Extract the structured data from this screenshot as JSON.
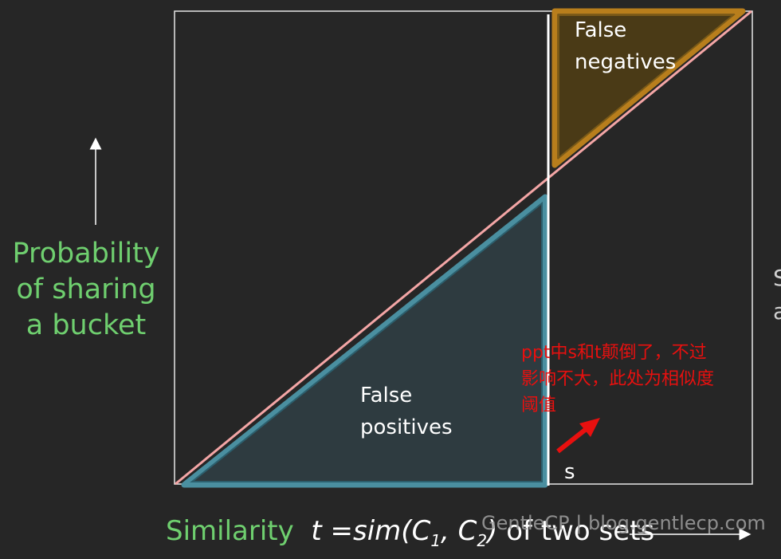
{
  "y_axis_label": [
    "Probability",
    "of sharing",
    "a bucket"
  ],
  "regions": {
    "false_negatives": [
      "False",
      "negatives"
    ],
    "false_positives": [
      "False",
      "positives"
    ]
  },
  "threshold_label": "s",
  "annotation": [
    "ppt中s和t颠倒了，不过",
    "影响不大，此处为相似度",
    "阈值"
  ],
  "x_axis_label": {
    "prefix": "Similarity",
    "formula_t": "t =sim(C",
    "sub1": "1",
    "comma": ", C",
    "sub2": "2",
    "close": ")",
    "suffix": " of two sets"
  },
  "watermark": "GentleCP | blog.gentlecp.com",
  "cut_off_text": [
    "S",
    "a"
  ],
  "colors": {
    "background": "#262626",
    "diagonal": "#f4a6a6",
    "false_negative_fill": "#4a3a16",
    "false_negative_stroke": "#b87e1c",
    "false_positive_fill": "#2e3b40",
    "false_positive_stroke": "#4a8fa0",
    "label_green": "#6fcf6f",
    "annotation_red": "#e8100f"
  }
}
